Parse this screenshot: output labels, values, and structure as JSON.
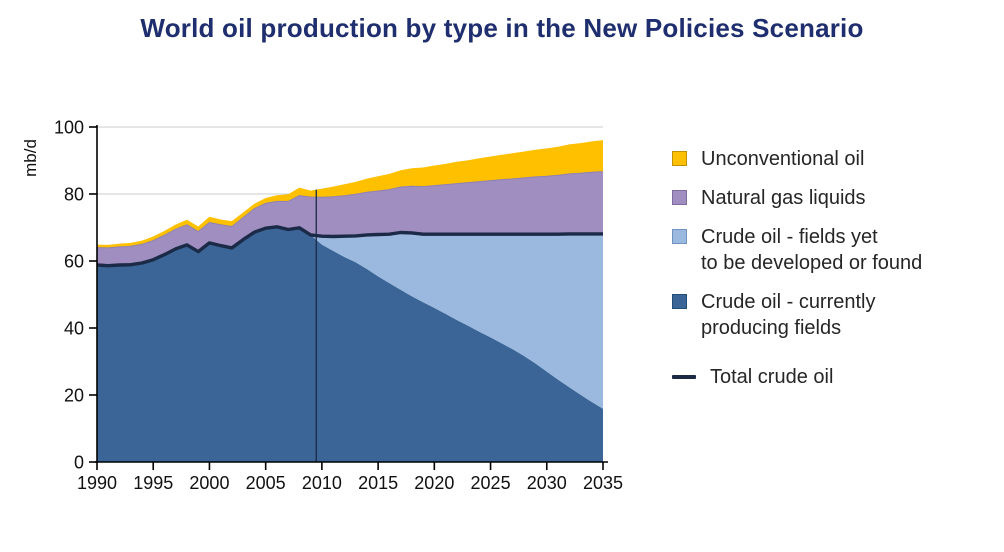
{
  "title": "World oil production by type in the New Policies Scenario",
  "colors": {
    "title": "#1E2E6E",
    "axis": "#000000",
    "tick_label": "#111111",
    "grid": "#C9CCD1",
    "divider": "#1B2A47",
    "legend_text": "#262626",
    "unconventional": "#FFC000",
    "ngl": "#A08EC0",
    "crude_new_fields": "#9BB9DF",
    "crude_producing": "#3A6596",
    "total_crude_line": "#1B2A47",
    "ngl_top_edge": "#8F81B3"
  },
  "legend": {
    "items": [
      {
        "type": "area",
        "label": "Unconventional oil",
        "lines": [
          "Unconventional oil"
        ],
        "color": "#FFC000",
        "border": "#BF9000"
      },
      {
        "type": "area",
        "label": "Natural gas liquids",
        "lines": [
          "Natural gas liquids"
        ],
        "color": "#A08EC0",
        "border": "#7E6BA0"
      },
      {
        "type": "area",
        "label": "Crude oil - fields yet to be developed or found",
        "lines": [
          "Crude oil - fields yet",
          "to be developed or found"
        ],
        "color": "#9BB9DF",
        "border": "#6E93BF"
      },
      {
        "type": "area",
        "label": "Crude oil - currently producing fields",
        "lines": [
          "Crude oil - currently",
          "producing fields"
        ],
        "color": "#3A6596",
        "border": "#1F4E79"
      },
      {
        "type": "line",
        "label": "Total crude oil",
        "lines": [
          "Total crude oil"
        ],
        "color": "#1B2A47"
      }
    ]
  },
  "chart_data": {
    "type": "area",
    "stacked": true,
    "title": "World oil production by type in the New Policies Scenario",
    "xlabel": "",
    "ylabel": "mb/d",
    "xlim": [
      1990,
      2035
    ],
    "ylim": [
      0,
      100
    ],
    "xticks": [
      1990,
      1995,
      2000,
      2005,
      2010,
      2015,
      2020,
      2025,
      2030,
      2035
    ],
    "yticks": [
      0,
      20,
      40,
      60,
      80,
      100
    ],
    "grid": true,
    "legend_position": "right",
    "divider_year": 2009,
    "years": [
      1990,
      1991,
      1992,
      1993,
      1994,
      1995,
      1996,
      1997,
      1998,
      1999,
      2000,
      2001,
      2002,
      2003,
      2004,
      2005,
      2006,
      2007,
      2008,
      2009,
      2010,
      2011,
      2012,
      2013,
      2014,
      2015,
      2016,
      2017,
      2018,
      2019,
      2020,
      2021,
      2022,
      2023,
      2024,
      2025,
      2026,
      2027,
      2028,
      2029,
      2030,
      2031,
      2032,
      2033,
      2034,
      2035
    ],
    "series": [
      {
        "name": "Crude oil - currently producing fields",
        "color": "#3A6596",
        "values": [
          58.8,
          58.6,
          58.8,
          58.9,
          59.4,
          60.4,
          61.9,
          63.6,
          64.8,
          62.8,
          65.4,
          64.6,
          63.9,
          66.4,
          68.6,
          69.8,
          70.2,
          69.4,
          69.9,
          67.8,
          64.9,
          63.0,
          61.2,
          59.6,
          57.6,
          55.4,
          53.4,
          51.4,
          49.5,
          47.7,
          46.0,
          44.2,
          42.4,
          40.7,
          38.9,
          37.2,
          35.4,
          33.6,
          31.6,
          29.4,
          27.0,
          24.6,
          22.3,
          20.1,
          17.9,
          15.9
        ]
      },
      {
        "name": "Crude oil - fields yet to be developed or found",
        "color": "#9BB9DF",
        "values": [
          0,
          0,
          0,
          0,
          0,
          0,
          0,
          0,
          0,
          0,
          0,
          0,
          0,
          0,
          0,
          0,
          0,
          0,
          0,
          0,
          2.5,
          4.3,
          6.2,
          7.9,
          10.2,
          12.5,
          14.6,
          17.1,
          18.9,
          20.3,
          22.0,
          23.8,
          25.6,
          27.3,
          29.1,
          30.8,
          32.6,
          34.4,
          36.4,
          38.6,
          41.0,
          43.4,
          45.8,
          48.0,
          50.2,
          52.2
        ]
      },
      {
        "name": "Natural gas liquids",
        "color": "#A08EC0",
        "values": [
          5.2,
          5.3,
          5.4,
          5.5,
          5.6,
          5.7,
          5.8,
          5.9,
          6.0,
          6.0,
          6.1,
          6.2,
          6.4,
          6.6,
          7.0,
          7.4,
          7.6,
          8.4,
          9.6,
          11.3,
          11.6,
          11.9,
          12.1,
          12.4,
          12.7,
          13.0,
          13.3,
          13.6,
          13.9,
          14.2,
          14.5,
          14.8,
          15.1,
          15.4,
          15.7,
          16.0,
          16.3,
          16.5,
          16.8,
          17.1,
          17.3,
          17.6,
          17.9,
          18.1,
          18.4,
          18.6
        ]
      },
      {
        "name": "Unconventional oil",
        "color": "#FFC000",
        "values": [
          0.9,
          0.9,
          1.0,
          1.0,
          1.1,
          1.2,
          1.3,
          1.4,
          1.5,
          1.5,
          1.7,
          1.6,
          1.6,
          1.5,
          1.5,
          1.6,
          1.8,
          2.1,
          2.4,
          1.9,
          2.6,
          3.0,
          3.4,
          3.7,
          4.1,
          4.4,
          4.7,
          5.0,
          5.4,
          5.7,
          6.0,
          6.2,
          6.5,
          6.7,
          7.0,
          7.2,
          7.4,
          7.7,
          7.9,
          8.1,
          8.3,
          8.5,
          8.8,
          9.0,
          9.2,
          9.4
        ]
      }
    ],
    "line_series": {
      "name": "Total crude oil",
      "color": "#1B2A47",
      "values": [
        58.8,
        58.6,
        58.8,
        58.9,
        59.4,
        60.4,
        61.9,
        63.6,
        64.8,
        62.8,
        65.4,
        64.6,
        63.9,
        66.4,
        68.6,
        69.8,
        70.2,
        69.4,
        69.9,
        67.8,
        67.4,
        67.3,
        67.4,
        67.5,
        67.8,
        67.9,
        68.0,
        68.5,
        68.4,
        68.0,
        68.0,
        68.0,
        68.0,
        68.0,
        68.0,
        68.0,
        68.0,
        68.0,
        68.0,
        68.0,
        68.0,
        68.0,
        68.1,
        68.1,
        68.1,
        68.1
      ]
    }
  }
}
